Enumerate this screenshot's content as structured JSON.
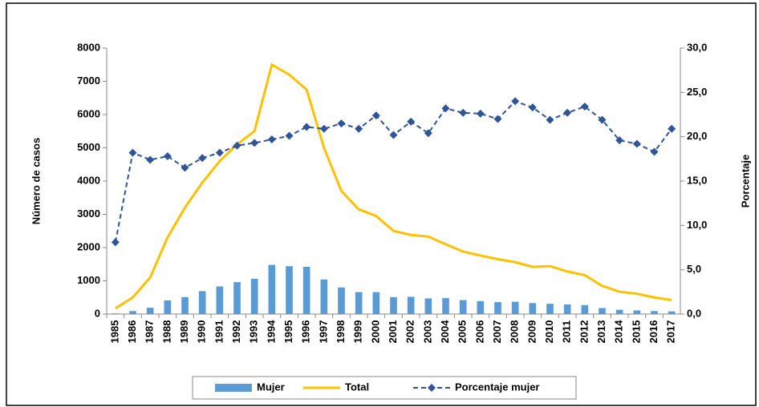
{
  "chart_data": {
    "type": "combo",
    "categories": [
      "1985",
      "1986",
      "1987",
      "1988",
      "1989",
      "1990",
      "1991",
      "1992",
      "1993",
      "1994",
      "1995",
      "1996",
      "1997",
      "1998",
      "1999",
      "2000",
      "2001",
      "2002",
      "2003",
      "2004",
      "2005",
      "2006",
      "2007",
      "2008",
      "2009",
      "2010",
      "2011",
      "2012",
      "2013",
      "2014",
      "2015",
      "2016",
      "2017"
    ],
    "series": [
      {
        "name": "Mujer",
        "type": "bar",
        "color": "#5b9bd5",
        "values": [
          20,
          90,
          190,
          410,
          510,
          690,
          830,
          960,
          1060,
          1480,
          1440,
          1420,
          1040,
          800,
          660,
          660,
          510,
          520,
          470,
          480,
          420,
          390,
          360,
          370,
          330,
          310,
          290,
          270,
          180,
          130,
          110,
          90,
          80
        ]
      },
      {
        "name": "Total",
        "type": "line",
        "color": "#ffc000",
        "values": [
          170,
          500,
          1100,
          2300,
          3200,
          3950,
          4600,
          5100,
          5500,
          7500,
          7200,
          6750,
          5000,
          3700,
          3150,
          2950,
          2500,
          2380,
          2330,
          2100,
          1880,
          1760,
          1650,
          1560,
          1420,
          1440,
          1280,
          1170,
          850,
          670,
          610,
          500,
          420
        ]
      },
      {
        "name": "Porcentaje mujer",
        "type": "line",
        "axis": "y2",
        "color": "#2f5597",
        "dashed": true,
        "marker": "diamond",
        "values": [
          8.1,
          18.2,
          17.4,
          17.8,
          16.5,
          17.6,
          18.2,
          19.0,
          19.3,
          19.7,
          20.1,
          21.1,
          20.9,
          21.5,
          20.9,
          22.4,
          20.2,
          21.7,
          20.4,
          23.2,
          22.7,
          22.6,
          22.0,
          24.0,
          23.3,
          21.9,
          22.7,
          23.4,
          21.9,
          19.6,
          19.2,
          18.3,
          20.9
        ]
      }
    ],
    "ylabel": "Número de casos",
    "y2label": "Porcentaje",
    "ylim": [
      0,
      8000
    ],
    "yticks": [
      0,
      1000,
      2000,
      3000,
      4000,
      5000,
      6000,
      7000,
      8000
    ],
    "y2lim": [
      0,
      30
    ],
    "y2ticks": [
      {
        "value": 0,
        "label": "0,0"
      },
      {
        "value": 5,
        "label": "5,0"
      },
      {
        "value": 10,
        "label": "10,0"
      },
      {
        "value": 15,
        "label": "15,0"
      },
      {
        "value": 20,
        "label": "20,0"
      },
      {
        "value": 25,
        "label": "25,0"
      },
      {
        "value": 30,
        "label": "30,0"
      }
    ],
    "grid": false,
    "legend": "bottom"
  }
}
